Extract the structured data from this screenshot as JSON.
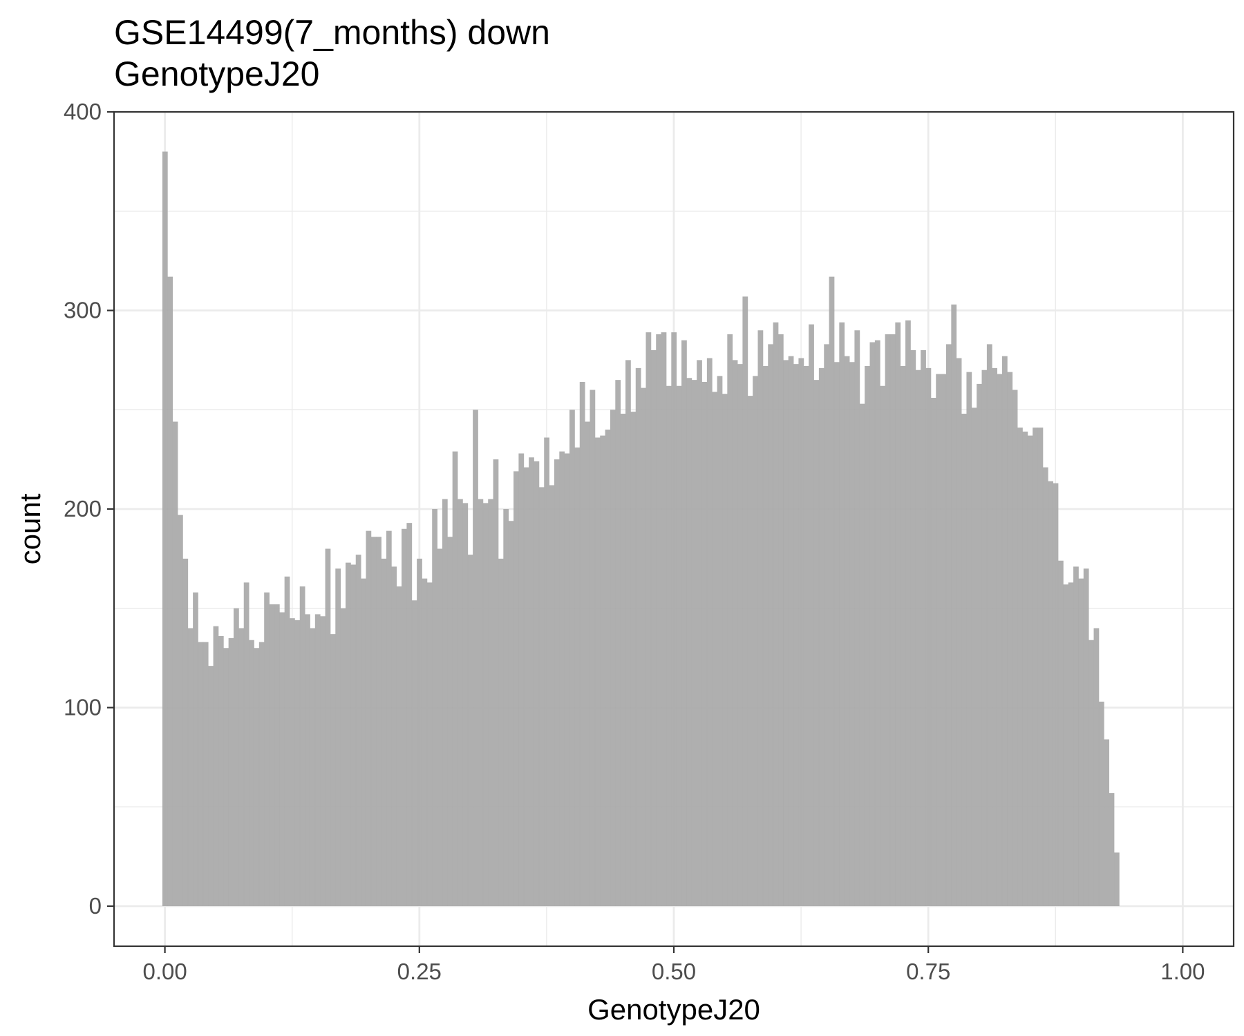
{
  "chart_data": {
    "type": "bar",
    "title": "GSE14499(7_months) down",
    "subtitle": "GenotypeJ20",
    "xlabel": "GenotypeJ20",
    "ylabel": "count",
    "xlim": [
      -0.05,
      1.05
    ],
    "ylim": [
      -20,
      400
    ],
    "x_ticks": [
      "0.00",
      "0.25",
      "0.50",
      "0.75",
      "1.00"
    ],
    "y_ticks": [
      "0",
      "100",
      "200",
      "300",
      "400"
    ],
    "grid": true,
    "bar_color": "#ababab",
    "bin_width": 0.005,
    "values": [
      380,
      317,
      244,
      197,
      175,
      140,
      158,
      133,
      133,
      121,
      141,
      136,
      130,
      135,
      150,
      140,
      163,
      134,
      130,
      133,
      158,
      152,
      152,
      148,
      166,
      145,
      144,
      161,
      147,
      140,
      147,
      146,
      180,
      137,
      170,
      150,
      173,
      172,
      177,
      165,
      189,
      186,
      186,
      175,
      189,
      171,
      161,
      190,
      193,
      154,
      175,
      165,
      163,
      200,
      180,
      205,
      186,
      229,
      205,
      203,
      177,
      250,
      205,
      203,
      205,
      225,
      175,
      200,
      194,
      219,
      228,
      221,
      226,
      224,
      211,
      236,
      212,
      225,
      229,
      228,
      250,
      231,
      264,
      244,
      260,
      236,
      237,
      240,
      250,
      265,
      248,
      275,
      249,
      271,
      261,
      289,
      280,
      288,
      289,
      262,
      289,
      262,
      285,
      266,
      265,
      275,
      264,
      276,
      259,
      267,
      258,
      288,
      275,
      273,
      307,
      257,
      267,
      290,
      272,
      283,
      294,
      288,
      275,
      277,
      273,
      276,
      272,
      293,
      265,
      271,
      283,
      317,
      274,
      294,
      277,
      274,
      290,
      253,
      272,
      284,
      285,
      262,
      288,
      288,
      294,
      272,
      295,
      280,
      270,
      280,
      271,
      256,
      268,
      268,
      283,
      303,
      276,
      248,
      269,
      251,
      263,
      270,
      283,
      271,
      268,
      277,
      269,
      260,
      241,
      239,
      237,
      241,
      241,
      221,
      214,
      213,
      174,
      162,
      163,
      171,
      165,
      170,
      134,
      140,
      103,
      84,
      57,
      27
    ]
  }
}
